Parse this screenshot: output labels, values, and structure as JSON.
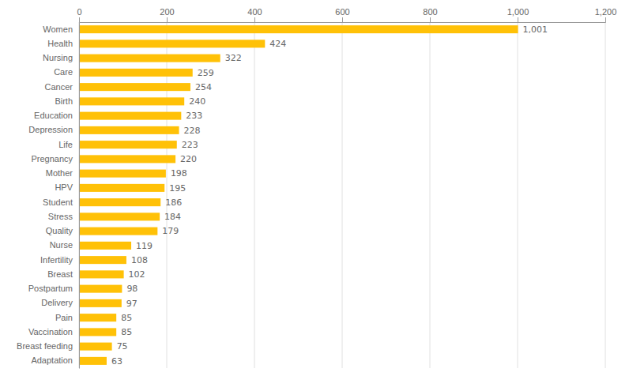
{
  "chart_data": {
    "type": "bar",
    "orientation": "horizontal",
    "categories": [
      "Women",
      "Health",
      "Nursing",
      "Care",
      "Cancer",
      "Birth",
      "Education",
      "Depression",
      "Life",
      "Pregnancy",
      "Mother",
      "HPV",
      "Student",
      "Stress",
      "Quality",
      "Nurse",
      "Infertility",
      "Breast",
      "Postpartum",
      "Delivery",
      "Pain",
      "Vaccination",
      "Breast feeding",
      "Adaptation"
    ],
    "values": [
      1001,
      424,
      322,
      259,
      254,
      240,
      233,
      228,
      223,
      220,
      198,
      195,
      186,
      184,
      179,
      119,
      108,
      102,
      98,
      97,
      85,
      85,
      75,
      63
    ],
    "value_labels": [
      "1,001",
      "424",
      "322",
      "259",
      "254",
      "240",
      "233",
      "228",
      "223",
      "220",
      "198",
      "195",
      "186",
      "184",
      "179",
      "119",
      "108",
      "102",
      "98",
      "97",
      "85",
      "85",
      "75",
      "63"
    ],
    "data_labels": true,
    "color": "#FFC107",
    "xlim": [
      0,
      1200
    ],
    "xticks": [
      0,
      200,
      400,
      600,
      800,
      {
        "value": 1000,
        "label": "1,000"
      },
      {
        "value": 1200,
        "label": "1,200"
      }
    ],
    "grid": true
  }
}
